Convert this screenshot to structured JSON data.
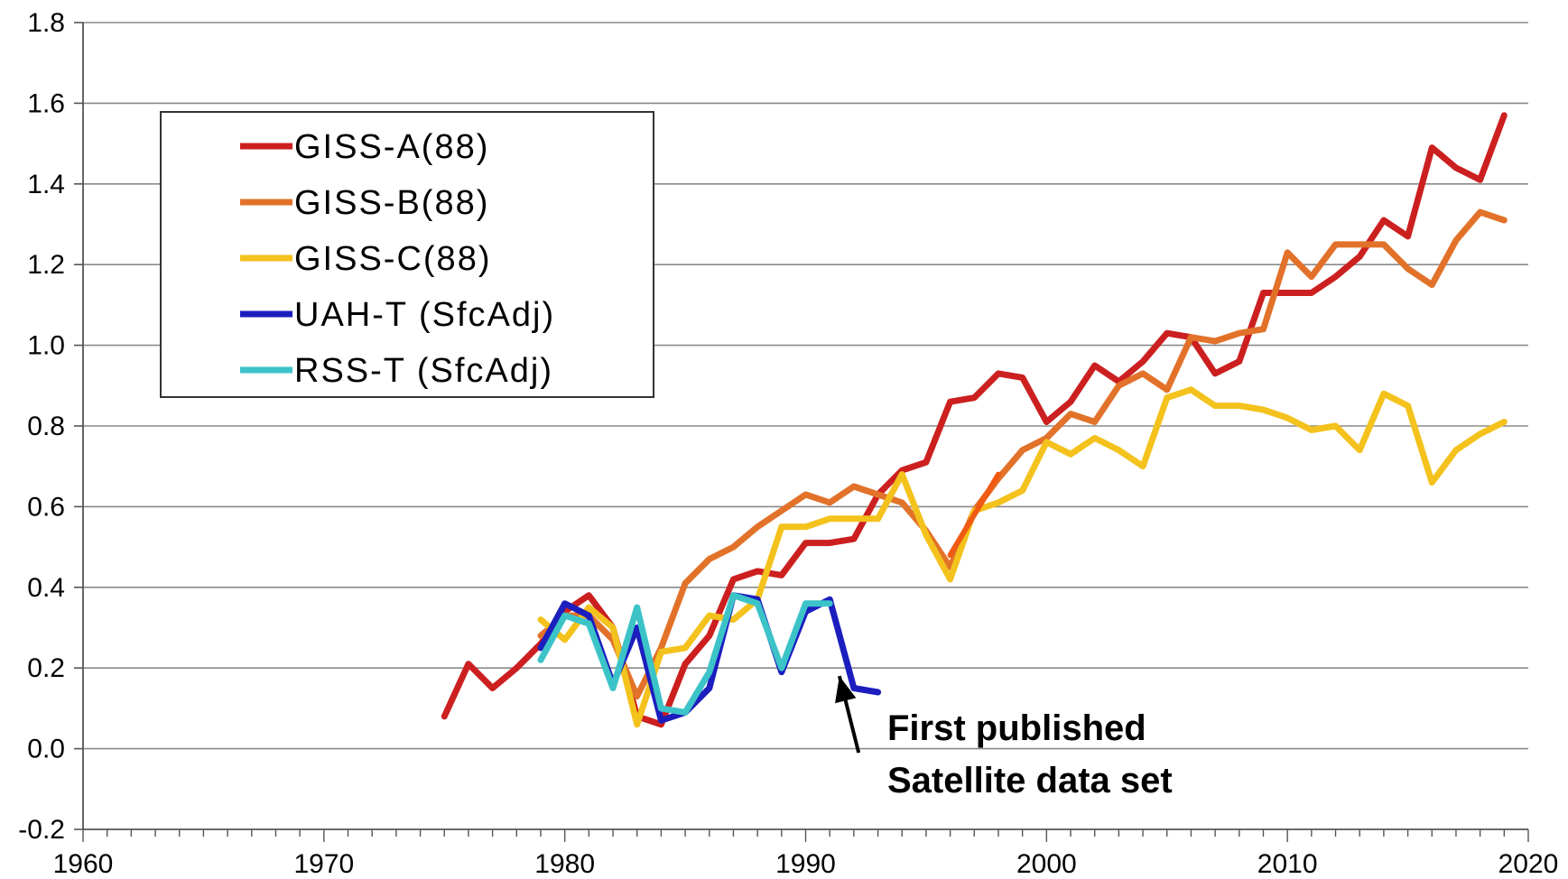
{
  "chart_data": {
    "type": "line",
    "title": "",
    "xlabel": "",
    "ylabel": "",
    "xlim": [
      1960,
      2020
    ],
    "ylim": [
      -0.2,
      1.8
    ],
    "xticks": [
      1960,
      1970,
      1980,
      1990,
      2000,
      2010,
      2020
    ],
    "yticks": [
      -0.2,
      0.0,
      0.2,
      0.4,
      0.6,
      0.8,
      1.0,
      1.2,
      1.4,
      1.6,
      1.8
    ],
    "ytick_labels": [
      "-0.2",
      "0.0",
      "0.2",
      "0.4",
      "0.6",
      "0.8",
      "1.0",
      "1.2",
      "1.4",
      "1.6",
      "1.8"
    ],
    "grid": "horizontal",
    "legend_position": "top-left",
    "series": [
      {
        "name": "GISS-A(88)",
        "color": "#cc1f1f",
        "x": [
          1975,
          1976,
          1977,
          1978,
          1979,
          1980,
          1981,
          1982,
          1983,
          1984,
          1985,
          1986,
          1987,
          1988,
          1989,
          1990,
          1991,
          1992,
          1993,
          1994,
          1995,
          1996,
          1997,
          1998,
          1999,
          2000,
          2001,
          2002,
          2003,
          2004,
          2005,
          2006,
          2007,
          2008,
          2009,
          2010,
          2011,
          2012,
          2013,
          2014,
          2015,
          2016,
          2017,
          2018,
          2019
        ],
        "y": [
          0.08,
          0.21,
          0.15,
          0.2,
          0.26,
          0.34,
          0.38,
          0.3,
          0.08,
          0.06,
          0.21,
          0.28,
          0.42,
          0.44,
          0.43,
          0.51,
          0.51,
          0.52,
          0.63,
          0.69,
          0.71,
          0.86,
          0.87,
          0.93,
          0.92,
          0.81,
          0.86,
          0.95,
          0.91,
          0.96,
          1.03,
          1.02,
          0.93,
          0.96,
          1.13,
          1.13,
          1.13,
          1.17,
          1.22,
          1.31,
          1.27,
          1.49,
          1.44,
          1.41,
          1.57
        ]
      },
      {
        "name": "GISS-B(88)",
        "color": "#e2722a",
        "x": [
          1979,
          1980,
          1981,
          1982,
          1983,
          1984,
          1985,
          1986,
          1987,
          1988,
          1989,
          1990,
          1991,
          1992,
          1993,
          1994,
          1995,
          1996,
          1997,
          1998,
          1999,
          2000,
          2001,
          2002,
          2003,
          2004,
          2005,
          2006,
          2007,
          2008,
          2009,
          2010,
          2011,
          2012,
          2013,
          2014,
          2015,
          2016,
          2017,
          2018,
          2019
        ],
        "y": [
          0.28,
          0.33,
          0.33,
          0.27,
          0.13,
          0.25,
          0.41,
          0.47,
          0.5,
          0.55,
          0.59,
          0.63,
          0.61,
          0.65,
          0.63,
          0.61,
          0.54,
          0.45,
          0.59,
          0.67,
          0.74,
          0.77,
          0.83,
          0.81,
          0.9,
          0.93,
          0.89,
          1.02,
          1.01,
          1.03,
          1.04,
          1.23,
          1.17,
          1.25,
          1.25,
          1.25,
          1.19,
          1.15,
          1.26,
          1.33,
          1.31
        ]
      },
      {
        "name": "GISS-C(88)",
        "color": "#f4c21c",
        "x": [
          1979,
          1980,
          1981,
          1982,
          1983,
          1984,
          1985,
          1986,
          1987,
          1988,
          1989,
          1990,
          1991,
          1992,
          1993,
          1994,
          1995,
          1996,
          1997,
          1998,
          1999,
          2000,
          2001,
          2002,
          2003,
          2004,
          2005,
          2006,
          2007,
          2008,
          2009,
          2010,
          2011,
          2012,
          2013,
          2014,
          2015,
          2016,
          2017,
          2018,
          2019
        ],
        "y": [
          0.32,
          0.27,
          0.35,
          0.3,
          0.06,
          0.24,
          0.25,
          0.33,
          0.32,
          0.37,
          0.55,
          0.55,
          0.57,
          0.57,
          0.57,
          0.68,
          0.53,
          0.42,
          0.59,
          0.61,
          0.64,
          0.76,
          0.73,
          0.77,
          0.74,
          0.7,
          0.87,
          0.89,
          0.85,
          0.85,
          0.84,
          0.82,
          0.79,
          0.8,
          0.74,
          0.88,
          0.85,
          0.66,
          0.74,
          0.78,
          0.81
        ]
      },
      {
        "name": "UAH-T (SfcAdj)",
        "color": "#1c1ebe",
        "x": [
          1979,
          1980,
          1981,
          1982,
          1983,
          1984,
          1985,
          1986,
          1987,
          1988,
          1989,
          1990,
          1991,
          1992,
          1993
        ],
        "y": [
          0.25,
          0.36,
          0.33,
          0.16,
          0.3,
          0.07,
          0.09,
          0.15,
          0.38,
          0.37,
          0.19,
          0.34,
          0.37,
          0.15,
          0.14
        ]
      },
      {
        "name": "RSS-T (SfcAdj)",
        "color": "#3cc3c8",
        "x": [
          1979,
          1980,
          1981,
          1982,
          1983,
          1984,
          1985,
          1986,
          1987,
          1988,
          1989,
          1990,
          1991
        ],
        "y": [
          0.22,
          0.33,
          0.31,
          0.15,
          0.35,
          0.1,
          0.09,
          0.19,
          0.38,
          0.36,
          0.2,
          0.36,
          0.36
        ]
      }
    ],
    "overlay_segment": {
      "color": "#f05a12",
      "x": [
        1996,
        1998
      ],
      "y": [
        0.48,
        0.68
      ]
    },
    "annotations": [
      {
        "text_lines": [
          "First published",
          "Satellite data set"
        ],
        "arrow_to": [
          1991.4,
          0.18
        ],
        "arrow_from": [
          1992.2,
          -0.01
        ]
      }
    ]
  }
}
